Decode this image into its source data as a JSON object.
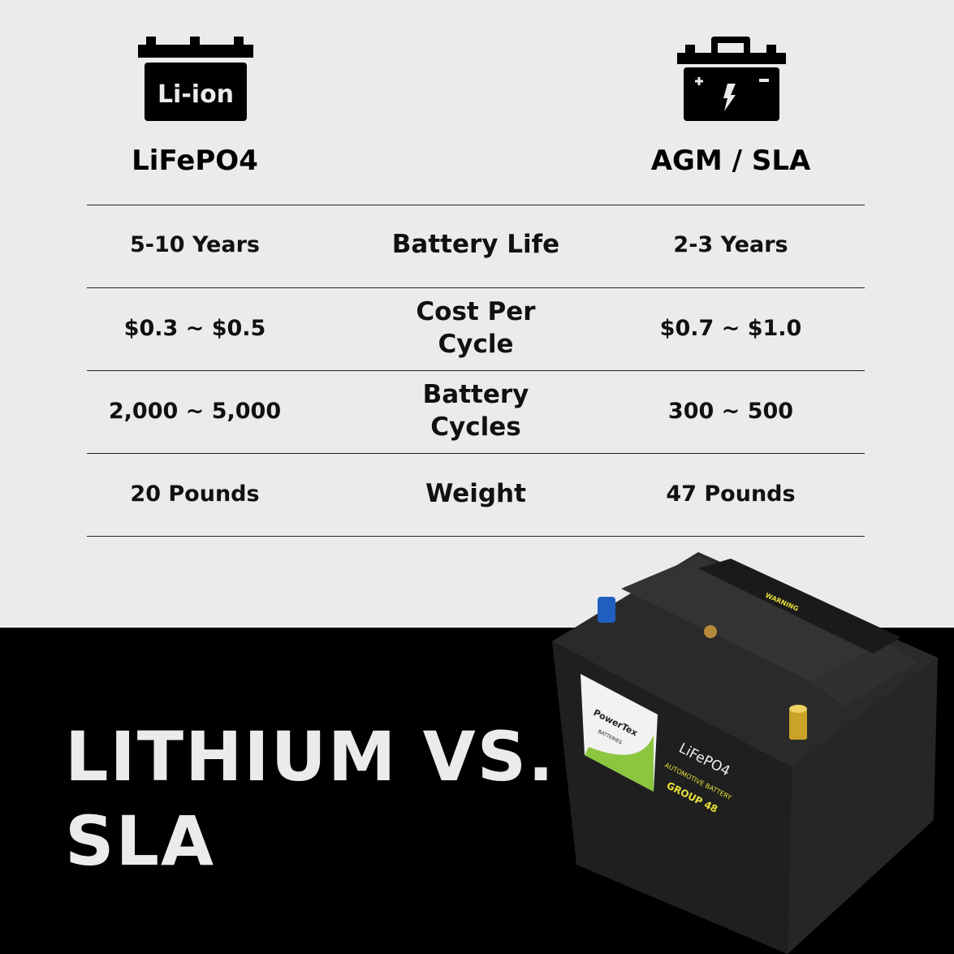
{
  "columns": {
    "left": {
      "icon": "li-ion-battery-icon",
      "icon_text": "Li-ion",
      "label": "LiFePO4"
    },
    "right": {
      "icon": "lead-acid-battery-icon",
      "label": "AGM / SLA"
    }
  },
  "rows": [
    {
      "left": "5-10 Years",
      "metric": "Battery Life",
      "right": "2-3 Years"
    },
    {
      "left": "$0.3 ~ $0.5",
      "metric": "Cost Per Cycle",
      "right": "$0.7 ~ $1.0"
    },
    {
      "left": "2,000 ~ 5,000",
      "metric": "Battery Cycles",
      "right": "300 ~ 500"
    },
    {
      "left": "20 Pounds",
      "metric": "Weight",
      "right": "47 Pounds"
    }
  ],
  "headline": {
    "line1": "LITHIUM VS.",
    "line2": "SLA"
  },
  "product": {
    "brand": "PowerTex",
    "brand_sub": "BATTERIES",
    "chemistry": "LiFePO4",
    "type": "AUTOMOTIVE BATTERY",
    "group": "GROUP 48",
    "warning": "WARNING"
  },
  "colors": {
    "background_top": "#ebebeb",
    "background_bottom": "#000000",
    "accent_green": "#8cc63f",
    "label_yellow": "#e8e03a"
  }
}
